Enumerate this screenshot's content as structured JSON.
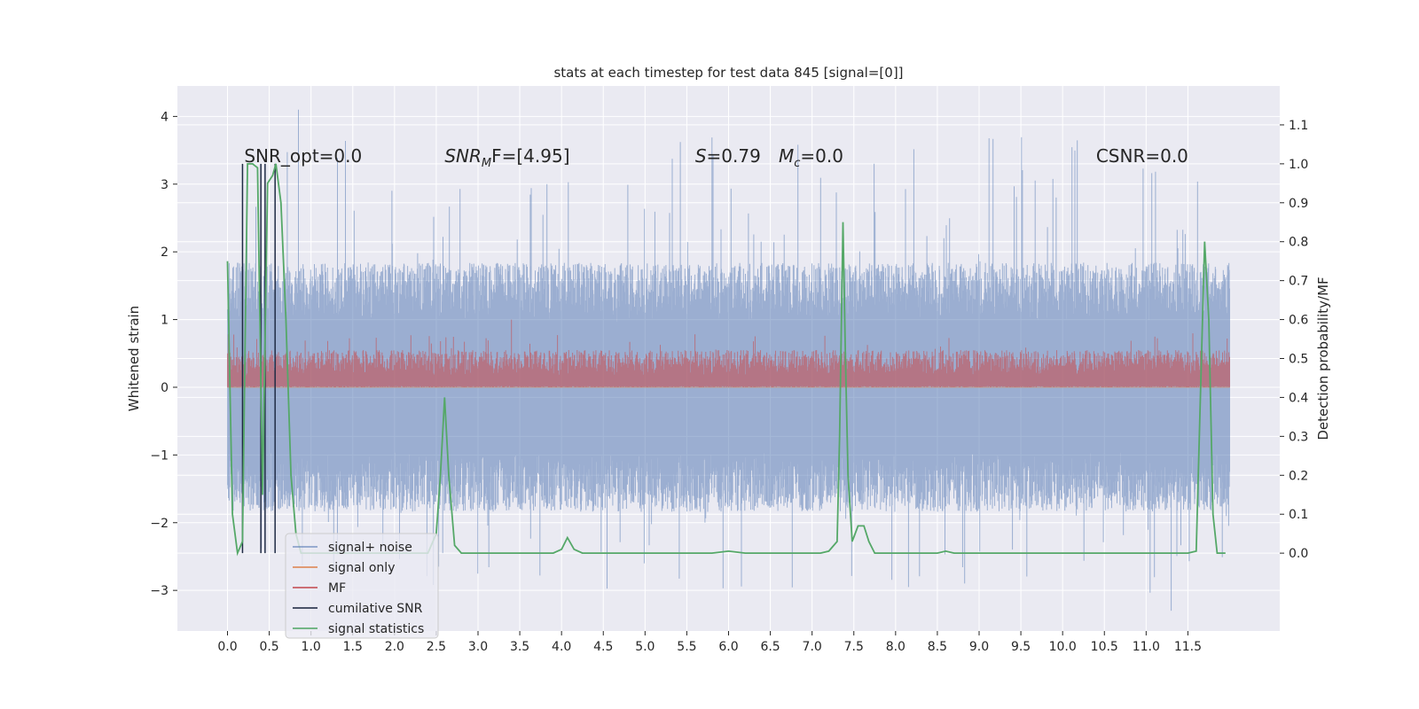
{
  "chart_data": {
    "type": "line",
    "title": "stats at each timestep for test data 845 [signal=[0]]",
    "xlabel": "",
    "ylabel_left": "Whitened strain",
    "ylabel_right": "Detection probability/MF",
    "xlim": [
      -0.6,
      12.6
    ],
    "ylim_left": [
      -3.6,
      4.45
    ],
    "ylim_right": [
      -0.2,
      1.2
    ],
    "x_ticks": [
      "0.0",
      "0.5",
      "1.0",
      "1.5",
      "2.0",
      "2.5",
      "3.0",
      "3.5",
      "4.0",
      "4.5",
      "5.0",
      "5.5",
      "6.0",
      "6.5",
      "7.0",
      "7.5",
      "8.0",
      "8.5",
      "9.0",
      "9.5",
      "10.0",
      "10.5",
      "11.0",
      "11.5"
    ],
    "y_ticks_left": [
      "−3",
      "−2",
      "−1",
      "0",
      "1",
      "2",
      "3",
      "4"
    ],
    "y_ticks_right": [
      "0.0",
      "0.1",
      "0.2",
      "0.3",
      "0.4",
      "0.5",
      "0.6",
      "0.7",
      "0.8",
      "0.9",
      "1.0",
      "1.1"
    ],
    "grid": true,
    "legend_position": "lower-left",
    "annotations": [
      {
        "x": 0.2,
        "text": "SNR_opt=0.0"
      },
      {
        "x": 2.6,
        "text": "SNR_MF=[4.95]",
        "base": "SNR",
        "sub": "M",
        "rest": "F=[4.95]"
      },
      {
        "x": 5.6,
        "text": "S=0.79",
        "base": "S",
        "rest": "=0.79"
      },
      {
        "x": 6.6,
        "text": "M_c=0.0",
        "base": "M",
        "sub": "c",
        "rest": "=0.0"
      },
      {
        "x": 10.4,
        "text": "CSNR=0.0"
      }
    ],
    "series": [
      {
        "name": "signal+ noise",
        "color": "#4c72b0",
        "axis": "left",
        "style": "noise-band",
        "x_range": [
          0.0,
          12.0
        ],
        "envelope_typical": [
          -1.6,
          1.6
        ],
        "envelope_peaks": [
          -3.3,
          4.1
        ]
      },
      {
        "name": "signal only",
        "color": "#dd8452",
        "axis": "left",
        "style": "flat",
        "value": 0.0
      },
      {
        "name": "MF",
        "color": "#c44e52",
        "axis": "left",
        "style": "band",
        "x_range": [
          0.0,
          12.0
        ],
        "envelope_typical": [
          0.0,
          0.5
        ],
        "envelope_peaks": [
          0.0,
          1.0
        ]
      },
      {
        "name": "cumilative SNR",
        "color": "#1f2a44",
        "axis": "right",
        "style": "vlines",
        "x": [
          0.18,
          0.4,
          0.45,
          0.57
        ],
        "range": [
          0.0,
          1.0
        ]
      },
      {
        "name": "signal statistics",
        "color": "#55a868",
        "axis": "right",
        "style": "line",
        "x": [
          0.0,
          0.06,
          0.12,
          0.18,
          0.24,
          0.3,
          0.36,
          0.42,
          0.48,
          0.54,
          0.58,
          0.64,
          0.7,
          0.76,
          0.82,
          0.88,
          0.94,
          1.0,
          2.4,
          2.5,
          2.55,
          2.6,
          2.65,
          2.72,
          2.8,
          3.9,
          4.0,
          4.07,
          4.15,
          4.25,
          5.8,
          6.0,
          6.2,
          6.4,
          7.0,
          7.1,
          7.2,
          7.3,
          7.33,
          7.37,
          7.4,
          7.43,
          7.48,
          7.55,
          7.62,
          7.68,
          7.75,
          7.8,
          8.5,
          8.6,
          8.7,
          8.8,
          11.5,
          11.6,
          11.65,
          11.7,
          11.75,
          11.8,
          11.85,
          11.9,
          11.95
        ],
        "y": [
          0.75,
          0.1,
          0.0,
          0.03,
          1.0,
          1.0,
          0.99,
          0.15,
          0.95,
          0.97,
          1.0,
          0.9,
          0.6,
          0.2,
          0.05,
          0.0,
          0.0,
          0.0,
          0.0,
          0.05,
          0.2,
          0.4,
          0.2,
          0.02,
          0.0,
          0.0,
          0.01,
          0.04,
          0.01,
          0.0,
          0.0,
          0.005,
          0.0,
          0.0,
          0.0,
          0.0,
          0.005,
          0.03,
          0.3,
          0.85,
          0.5,
          0.2,
          0.03,
          0.07,
          0.07,
          0.03,
          0.0,
          0.0,
          0.0,
          0.005,
          0.0,
          0.0,
          0.0,
          0.005,
          0.4,
          0.8,
          0.6,
          0.1,
          0.0,
          0.0,
          0.0
        ]
      }
    ]
  }
}
